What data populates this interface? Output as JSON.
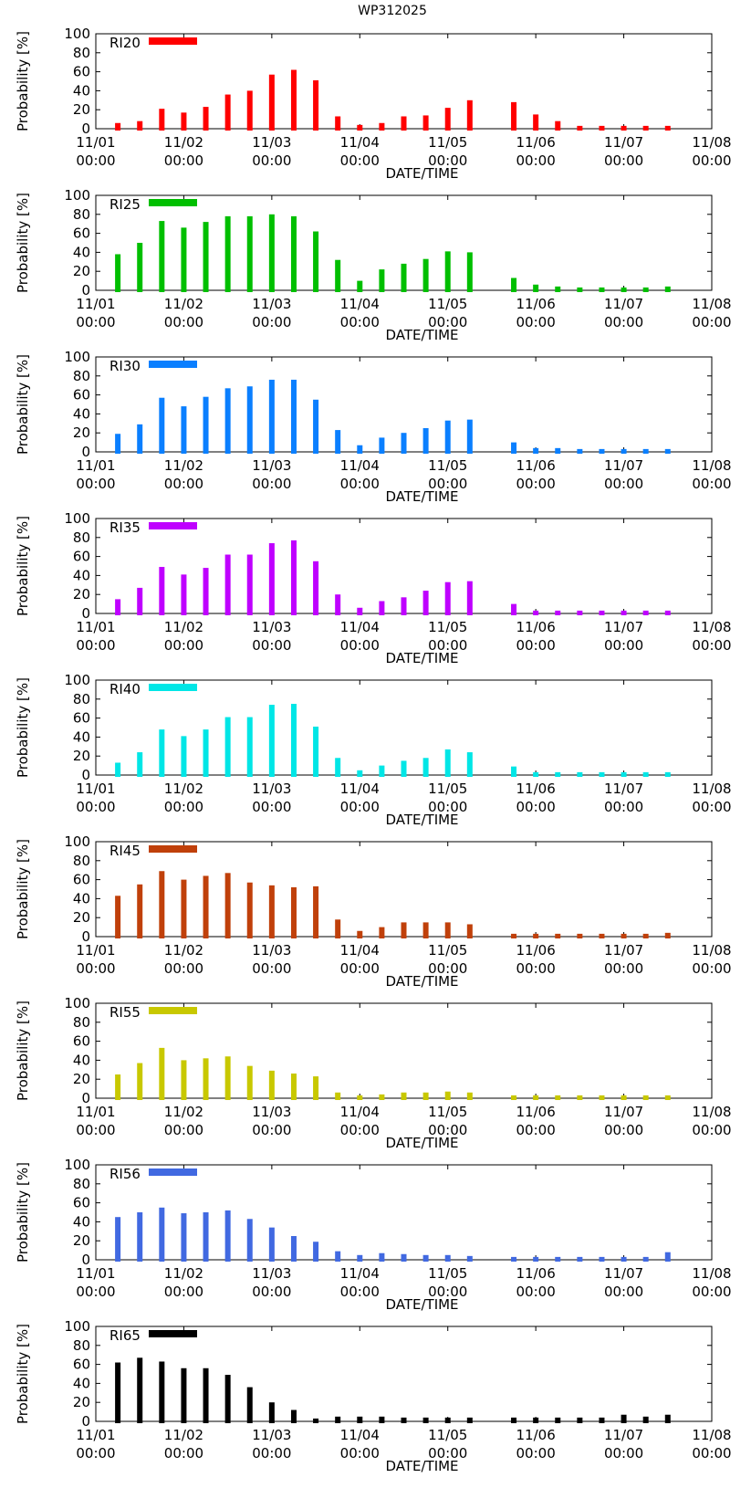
{
  "figure_title": "WP312025",
  "chart_data": [
    {
      "type": "bar",
      "title": "RI20",
      "color": "#ff0000",
      "xlabel": "DATE/TIME",
      "ylabel": "Probability [%]",
      "ylim": [
        0,
        100
      ],
      "yticks": [
        "0",
        "20",
        "40",
        "60",
        "80",
        "100"
      ],
      "xticks": [
        {
          "date": "11/01",
          "time": "00:00"
        },
        {
          "date": "11/02",
          "time": "00:00"
        },
        {
          "date": "11/03",
          "time": "00:00"
        },
        {
          "date": "11/04",
          "time": "00:00"
        },
        {
          "date": "11/05",
          "time": "00:00"
        },
        {
          "date": "11/06",
          "time": "00:00"
        },
        {
          "date": "11/07",
          "time": "00:00"
        },
        {
          "date": "11/08",
          "time": "00:00"
        }
      ],
      "x_hours": [
        6,
        12,
        18,
        24,
        30,
        36,
        42,
        48,
        54,
        60,
        66,
        72,
        78,
        84,
        90,
        96,
        102,
        114,
        120,
        126,
        132,
        138,
        144,
        150,
        156
      ],
      "values": [
        6,
        8,
        21,
        17,
        23,
        36,
        40,
        57,
        62,
        51,
        13,
        4,
        6,
        13,
        14,
        22,
        30,
        28,
        15,
        8,
        3,
        3,
        3,
        3,
        3
      ]
    },
    {
      "type": "bar",
      "title": "RI25",
      "color": "#00bf00",
      "xlabel": "DATE/TIME",
      "ylabel": "Probability [%]",
      "ylim": [
        0,
        100
      ],
      "yticks": [
        "0",
        "20",
        "40",
        "60",
        "80",
        "100"
      ],
      "xticks": [
        {
          "date": "11/01",
          "time": "00:00"
        },
        {
          "date": "11/02",
          "time": "00:00"
        },
        {
          "date": "11/03",
          "time": "00:00"
        },
        {
          "date": "11/04",
          "time": "00:00"
        },
        {
          "date": "11/05",
          "time": "00:00"
        },
        {
          "date": "11/06",
          "time": "00:00"
        },
        {
          "date": "11/07",
          "time": "00:00"
        },
        {
          "date": "11/08",
          "time": "00:00"
        }
      ],
      "x_hours": [
        6,
        12,
        18,
        24,
        30,
        36,
        42,
        48,
        54,
        60,
        66,
        72,
        78,
        84,
        90,
        96,
        102,
        114,
        120,
        126,
        132,
        138,
        144,
        150,
        156
      ],
      "values": [
        38,
        50,
        73,
        66,
        72,
        78,
        78,
        80,
        78,
        62,
        32,
        10,
        22,
        28,
        33,
        41,
        40,
        13,
        6,
        4,
        3,
        3,
        3,
        3,
        4
      ]
    },
    {
      "type": "bar",
      "title": "RI30",
      "color": "#0a7fff",
      "xlabel": "DATE/TIME",
      "ylabel": "Probability [%]",
      "ylim": [
        0,
        100
      ],
      "yticks": [
        "0",
        "20",
        "40",
        "60",
        "80",
        "100"
      ],
      "xticks": [
        {
          "date": "11/01",
          "time": "00:00"
        },
        {
          "date": "11/02",
          "time": "00:00"
        },
        {
          "date": "11/03",
          "time": "00:00"
        },
        {
          "date": "11/04",
          "time": "00:00"
        },
        {
          "date": "11/05",
          "time": "00:00"
        },
        {
          "date": "11/06",
          "time": "00:00"
        },
        {
          "date": "11/07",
          "time": "00:00"
        },
        {
          "date": "11/08",
          "time": "00:00"
        }
      ],
      "x_hours": [
        6,
        12,
        18,
        24,
        30,
        36,
        42,
        48,
        54,
        60,
        66,
        72,
        78,
        84,
        90,
        96,
        102,
        114,
        120,
        126,
        132,
        138,
        144,
        150,
        156
      ],
      "values": [
        19,
        29,
        57,
        48,
        58,
        67,
        69,
        76,
        76,
        55,
        23,
        7,
        15,
        20,
        25,
        33,
        34,
        10,
        4,
        4,
        3,
        3,
        3,
        3,
        3
      ]
    },
    {
      "type": "bar",
      "title": "RI35",
      "color": "#bf00ff",
      "xlabel": "DATE/TIME",
      "ylabel": "Probability [%]",
      "ylim": [
        0,
        100
      ],
      "yticks": [
        "0",
        "20",
        "40",
        "60",
        "80",
        "100"
      ],
      "xticks": [
        {
          "date": "11/01",
          "time": "00:00"
        },
        {
          "date": "11/02",
          "time": "00:00"
        },
        {
          "date": "11/03",
          "time": "00:00"
        },
        {
          "date": "11/04",
          "time": "00:00"
        },
        {
          "date": "11/05",
          "time": "00:00"
        },
        {
          "date": "11/06",
          "time": "00:00"
        },
        {
          "date": "11/07",
          "time": "00:00"
        },
        {
          "date": "11/08",
          "time": "00:00"
        }
      ],
      "x_hours": [
        6,
        12,
        18,
        24,
        30,
        36,
        42,
        48,
        54,
        60,
        66,
        72,
        78,
        84,
        90,
        96,
        102,
        114,
        120,
        126,
        132,
        138,
        144,
        150,
        156
      ],
      "values": [
        15,
        27,
        49,
        41,
        48,
        62,
        62,
        74,
        77,
        55,
        20,
        6,
        13,
        17,
        24,
        33,
        34,
        10,
        3,
        3,
        3,
        3,
        3,
        3,
        3
      ]
    },
    {
      "type": "bar",
      "title": "RI40",
      "color": "#00e6e6",
      "xlabel": "DATE/TIME",
      "ylabel": "Probability [%]",
      "ylim": [
        0,
        100
      ],
      "yticks": [
        "0",
        "20",
        "40",
        "60",
        "80",
        "100"
      ],
      "xticks": [
        {
          "date": "11/01",
          "time": "00:00"
        },
        {
          "date": "11/02",
          "time": "00:00"
        },
        {
          "date": "11/03",
          "time": "00:00"
        },
        {
          "date": "11/04",
          "time": "00:00"
        },
        {
          "date": "11/05",
          "time": "00:00"
        },
        {
          "date": "11/06",
          "time": "00:00"
        },
        {
          "date": "11/07",
          "time": "00:00"
        },
        {
          "date": "11/08",
          "time": "00:00"
        }
      ],
      "x_hours": [
        6,
        12,
        18,
        24,
        30,
        36,
        42,
        48,
        54,
        60,
        66,
        72,
        78,
        84,
        90,
        96,
        102,
        114,
        120,
        126,
        132,
        138,
        144,
        150,
        156
      ],
      "values": [
        13,
        24,
        48,
        41,
        48,
        61,
        61,
        74,
        75,
        51,
        18,
        5,
        10,
        15,
        18,
        27,
        24,
        9,
        3,
        3,
        3,
        3,
        3,
        3,
        3
      ]
    },
    {
      "type": "bar",
      "title": "RI45",
      "color": "#c0400a",
      "xlabel": "DATE/TIME",
      "ylabel": "Probability [%]",
      "ylim": [
        0,
        100
      ],
      "yticks": [
        "0",
        "20",
        "40",
        "60",
        "80",
        "100"
      ],
      "xticks": [
        {
          "date": "11/01",
          "time": "00:00"
        },
        {
          "date": "11/02",
          "time": "00:00"
        },
        {
          "date": "11/03",
          "time": "00:00"
        },
        {
          "date": "11/04",
          "time": "00:00"
        },
        {
          "date": "11/05",
          "time": "00:00"
        },
        {
          "date": "11/06",
          "time": "00:00"
        },
        {
          "date": "11/07",
          "time": "00:00"
        },
        {
          "date": "11/08",
          "time": "00:00"
        }
      ],
      "x_hours": [
        6,
        12,
        18,
        24,
        30,
        36,
        42,
        48,
        54,
        60,
        66,
        72,
        78,
        84,
        90,
        96,
        102,
        114,
        120,
        126,
        132,
        138,
        144,
        150,
        156
      ],
      "values": [
        43,
        55,
        69,
        60,
        64,
        67,
        57,
        54,
        52,
        53,
        18,
        6,
        10,
        15,
        15,
        15,
        13,
        3,
        3,
        3,
        3,
        3,
        3,
        3,
        4
      ]
    },
    {
      "type": "bar",
      "title": "RI55",
      "color": "#c8c800",
      "xlabel": "DATE/TIME",
      "ylabel": "Probability [%]",
      "ylim": [
        0,
        100
      ],
      "yticks": [
        "0",
        "20",
        "40",
        "60",
        "80",
        "100"
      ],
      "xticks": [
        {
          "date": "11/01",
          "time": "00:00"
        },
        {
          "date": "11/02",
          "time": "00:00"
        },
        {
          "date": "11/03",
          "time": "00:00"
        },
        {
          "date": "11/04",
          "time": "00:00"
        },
        {
          "date": "11/05",
          "time": "00:00"
        },
        {
          "date": "11/06",
          "time": "00:00"
        },
        {
          "date": "11/07",
          "time": "00:00"
        },
        {
          "date": "11/08",
          "time": "00:00"
        }
      ],
      "x_hours": [
        6,
        12,
        18,
        24,
        30,
        36,
        42,
        48,
        54,
        60,
        66,
        72,
        78,
        84,
        90,
        96,
        102,
        114,
        120,
        126,
        132,
        138,
        144,
        150,
        156
      ],
      "values": [
        25,
        37,
        53,
        40,
        42,
        44,
        34,
        29,
        26,
        23,
        6,
        3,
        4,
        6,
        6,
        7,
        6,
        3,
        3,
        3,
        3,
        3,
        3,
        3,
        3
      ]
    },
    {
      "type": "bar",
      "title": "RI56",
      "color": "#4169e1",
      "xlabel": "DATE/TIME",
      "ylabel": "Probability [%]",
      "ylim": [
        0,
        100
      ],
      "yticks": [
        "0",
        "20",
        "40",
        "60",
        "80",
        "100"
      ],
      "xticks": [
        {
          "date": "11/01",
          "time": "00:00"
        },
        {
          "date": "11/02",
          "time": "00:00"
        },
        {
          "date": "11/03",
          "time": "00:00"
        },
        {
          "date": "11/04",
          "time": "00:00"
        },
        {
          "date": "11/05",
          "time": "00:00"
        },
        {
          "date": "11/06",
          "time": "00:00"
        },
        {
          "date": "11/07",
          "time": "00:00"
        },
        {
          "date": "11/08",
          "time": "00:00"
        }
      ],
      "x_hours": [
        6,
        12,
        18,
        24,
        30,
        36,
        42,
        48,
        54,
        60,
        66,
        72,
        78,
        84,
        90,
        96,
        102,
        114,
        120,
        126,
        132,
        138,
        144,
        150,
        156
      ],
      "values": [
        45,
        50,
        55,
        49,
        50,
        52,
        43,
        34,
        25,
        19,
        9,
        5,
        7,
        6,
        5,
        5,
        4,
        3,
        3,
        3,
        3,
        3,
        3,
        3,
        8
      ]
    },
    {
      "type": "bar",
      "title": "RI65",
      "color": "#000000",
      "xlabel": "DATE/TIME",
      "ylabel": "Probability [%]",
      "ylim": [
        0,
        100
      ],
      "yticks": [
        "0",
        "20",
        "40",
        "60",
        "80",
        "100"
      ],
      "xticks": [
        {
          "date": "11/01",
          "time": "00:00"
        },
        {
          "date": "11/02",
          "time": "00:00"
        },
        {
          "date": "11/03",
          "time": "00:00"
        },
        {
          "date": "11/04",
          "time": "00:00"
        },
        {
          "date": "11/05",
          "time": "00:00"
        },
        {
          "date": "11/06",
          "time": "00:00"
        },
        {
          "date": "11/07",
          "time": "00:00"
        },
        {
          "date": "11/08",
          "time": "00:00"
        }
      ],
      "x_hours": [
        6,
        12,
        18,
        24,
        30,
        36,
        42,
        48,
        54,
        60,
        66,
        72,
        78,
        84,
        90,
        96,
        102,
        114,
        120,
        126,
        132,
        138,
        144,
        150,
        156
      ],
      "values": [
        62,
        67,
        63,
        56,
        56,
        49,
        36,
        20,
        12,
        3,
        5,
        5,
        5,
        4,
        4,
        4,
        4,
        4,
        4,
        4,
        4,
        4,
        7,
        5,
        7
      ]
    }
  ]
}
